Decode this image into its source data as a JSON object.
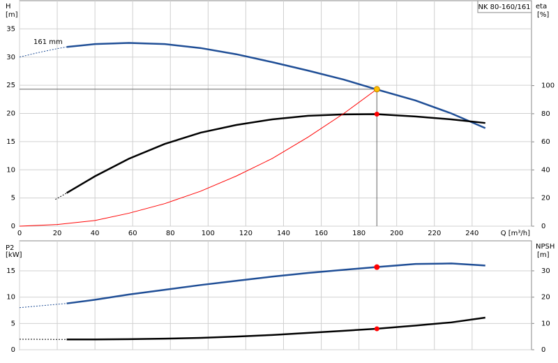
{
  "chart_data": [
    {
      "type": "line",
      "title": "NK 80-160/161",
      "annotation": "161 mm",
      "ylabel": [
        "H",
        "[m]"
      ],
      "y2label": [
        "eta",
        "[%]"
      ],
      "xlabel": "Q [m³/h]",
      "xlim": [
        0,
        271.5
      ],
      "xticks": [
        0,
        20,
        40,
        60,
        80,
        100,
        120,
        140,
        160,
        180,
        200,
        220,
        240
      ],
      "ylim": [
        0,
        40
      ],
      "yticks": [
        0,
        5,
        10,
        15,
        20,
        25,
        30,
        35
      ],
      "y2lim": [
        0,
        160.4
      ],
      "y2ticks": [
        0,
        20,
        40,
        60,
        80,
        100
      ],
      "grid": true,
      "guides": true,
      "series": [
        {
          "color": "#1f4e96",
          "style": "dashed",
          "x": [
            0,
            10,
            20,
            25
          ],
          "values": [
            30,
            30.8,
            31.5,
            31.8
          ]
        },
        {
          "color": "#1f4e96",
          "style": "solid",
          "x": [
            25,
            40,
            58,
            77,
            96,
            115,
            134,
            153,
            172,
            189,
            210,
            229,
            247
          ],
          "values": [
            31.8,
            32.3,
            32.5,
            32.3,
            31.6,
            30.5,
            29.1,
            27.6,
            26,
            24.3,
            22.3,
            20,
            17.4
          ]
        },
        {
          "color": "#000000",
          "style": "dashed",
          "axis": "y2",
          "x": [
            19,
            25
          ],
          "values": [
            19,
            23.6
          ]
        },
        {
          "color": "#000000",
          "style": "solid",
          "axis": "y2",
          "x": [
            25,
            40,
            58,
            77,
            96,
            115,
            134,
            153,
            172,
            189,
            210,
            229,
            247
          ],
          "values": [
            23.6,
            35.5,
            48,
            58.5,
            66.5,
            72,
            76,
            78.5,
            79.5,
            79.7,
            78,
            76,
            73.4
          ]
        },
        {
          "color": "#ff0000",
          "style": "thin",
          "x": [
            0,
            20,
            40,
            58,
            77,
            96,
            115,
            134,
            153,
            172,
            189.5
          ],
          "values": [
            0,
            0.3,
            1,
            2.3,
            4,
            6.2,
            8.9,
            12,
            15.8,
            20,
            24.3
          ]
        }
      ],
      "operating_point": {
        "x": 189.5,
        "y": 24.3,
        "y2": 79.7,
        "color": "#ffc000",
        "y2_color": "#ff0000"
      }
    },
    {
      "type": "line",
      "ylabel": [
        "P2",
        "[kW]"
      ],
      "y2label": [
        "NPSH",
        "[m]"
      ],
      "xlim": [
        0,
        271.5
      ],
      "xticks": [
        0,
        20,
        40,
        60,
        80,
        100,
        120,
        140,
        160,
        180,
        200,
        220,
        240
      ],
      "xtick_labels": false,
      "ylim": [
        0,
        20.7
      ],
      "yticks": [
        0,
        5,
        10,
        15
      ],
      "y2lim": [
        0,
        41.4
      ],
      "y2ticks": [
        0,
        10,
        20,
        30
      ],
      "grid": true,
      "guides": false,
      "series": [
        {
          "color": "#1f4e96",
          "style": "dashed",
          "x": [
            0,
            25
          ],
          "values": [
            8,
            8.8
          ]
        },
        {
          "color": "#1f4e96",
          "style": "solid",
          "x": [
            25,
            40,
            58,
            77,
            96,
            115,
            134,
            153,
            172,
            189,
            210,
            229,
            247
          ],
          "values": [
            8.8,
            9.5,
            10.5,
            11.4,
            12.3,
            13.1,
            13.9,
            14.6,
            15.2,
            15.7,
            16.3,
            16.4,
            16
          ]
        },
        {
          "color": "#000000",
          "style": "dashed",
          "axis": "y2",
          "x": [
            0,
            25
          ],
          "values": [
            4,
            3.9
          ]
        },
        {
          "color": "#000000",
          "style": "solid",
          "axis": "y2",
          "x": [
            25,
            40,
            58,
            77,
            96,
            115,
            134,
            153,
            172,
            189,
            210,
            229,
            247
          ],
          "values": [
            3.9,
            3.9,
            4,
            4.2,
            4.5,
            5,
            5.6,
            6.4,
            7.2,
            7.96,
            9.2,
            10.4,
            12.2
          ]
        }
      ],
      "operating_point": {
        "x": 189.5,
        "y": 15.7,
        "y2": 7.96,
        "color": "#ff0000",
        "y2_color": "#ff0000"
      }
    }
  ]
}
